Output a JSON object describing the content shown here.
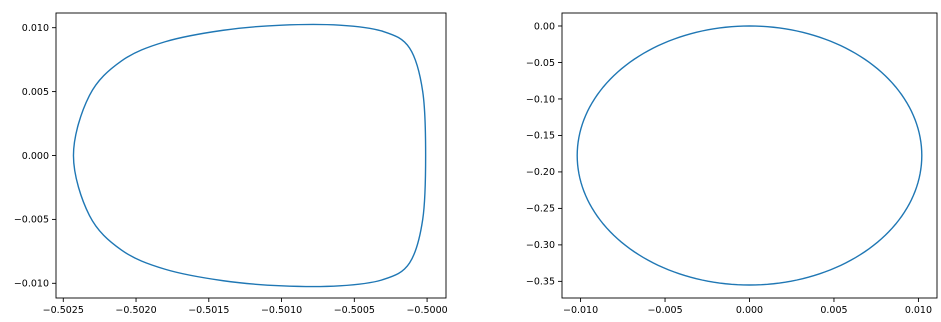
{
  "chart_data": [
    {
      "type": "line",
      "title": "",
      "xlabel": "",
      "ylabel": "",
      "grid": false,
      "xlim": [
        -0.50255,
        -0.49987
      ],
      "ylim": [
        -0.01115,
        0.01115
      ],
      "xticks": [
        -0.5025,
        -0.502,
        -0.5015,
        -0.501,
        -0.5005,
        -0.5
      ],
      "xtick_labels": [
        "−0.5025",
        "−0.5020",
        "−0.5015",
        "−0.5010",
        "−0.5005",
        "−0.5000"
      ],
      "yticks": [
        -0.01,
        -0.005,
        0.0,
        0.005,
        0.01
      ],
      "ytick_labels": [
        "−0.010",
        "−0.005",
        "0.000",
        "0.005",
        "0.010"
      ],
      "series": [
        {
          "color": "#1f77b4",
          "shape": "egg-shaped closed orbit",
          "x": [
            -0.50001,
            -0.50003,
            -0.50012,
            -0.5003,
            -0.5006,
            -0.501,
            -0.5014,
            -0.5018,
            -0.5021,
            -0.50232,
            -0.50243,
            -0.50232,
            -0.5021,
            -0.5018,
            -0.5014,
            -0.501,
            -0.5006,
            -0.5003,
            -0.50012,
            -0.50003,
            -0.50001
          ],
          "y": [
            0.0,
            0.005,
            0.0084,
            0.0097,
            0.0102,
            0.0102,
            0.0098,
            0.0089,
            0.0074,
            0.0047,
            0.0,
            -0.0047,
            -0.0074,
            -0.0089,
            -0.0098,
            -0.0102,
            -0.0102,
            -0.0097,
            -0.0084,
            -0.005,
            0.0
          ]
        }
      ]
    },
    {
      "type": "line",
      "title": "",
      "xlabel": "",
      "ylabel": "",
      "grid": false,
      "xlim": [
        -0.0111,
        0.0111
      ],
      "ylim": [
        -0.3728,
        0.0178
      ],
      "xticks": [
        -0.01,
        -0.005,
        0.0,
        0.005,
        0.01
      ],
      "xtick_labels": [
        "−0.010",
        "−0.005",
        "0.000",
        "0.005",
        "0.010"
      ],
      "yticks": [
        0.0,
        -0.05,
        -0.1,
        -0.15,
        -0.2,
        -0.25,
        -0.3,
        -0.35
      ],
      "ytick_labels": [
        "0.00",
        "−0.05",
        "−0.10",
        "−0.15",
        "−0.20",
        "−0.25",
        "−0.30",
        "−0.35"
      ],
      "series": [
        {
          "color": "#1f77b4",
          "shape": "ellipse",
          "center": [
            0.0,
            -0.1775
          ],
          "radius": [
            0.0102,
            0.1775
          ]
        }
      ]
    }
  ]
}
